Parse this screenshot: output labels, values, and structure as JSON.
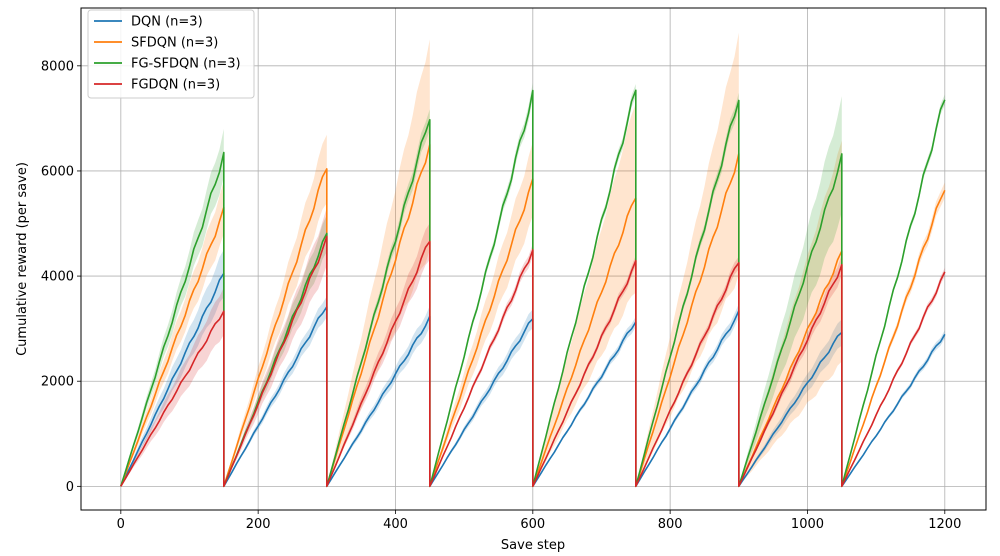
{
  "chart_data": {
    "type": "line",
    "title": "",
    "xlabel": "Save step",
    "ylabel": "Cumulative reward (per save)",
    "xlim": [
      -58,
      1260
    ],
    "ylim": [
      -450,
      9100
    ],
    "xticks": [
      0,
      200,
      400,
      600,
      800,
      1000,
      1200
    ],
    "yticks": [
      0,
      2000,
      4000,
      6000,
      8000
    ],
    "xtick_labels": [
      "0",
      "200",
      "400",
      "600",
      "800",
      "1000",
      "1200"
    ],
    "ytick_labels": [
      "0",
      "2000",
      "4000",
      "6000",
      "8000"
    ],
    "grid": true,
    "legend_position": "top-left",
    "segment_starts": [
      0,
      150,
      300,
      450,
      600,
      750,
      900,
      1050
    ],
    "segment_ends": [
      150,
      300,
      450,
      600,
      750,
      900,
      1050,
      1200
    ],
    "series": [
      {
        "name": "DQN (n=3)",
        "color": "#1f77b4",
        "peaks": [
          4050,
          3450,
          3200,
          3200,
          3150,
          3300,
          2950,
          2900
        ],
        "band_halfwidth": [
          450,
          200,
          200,
          180,
          100,
          130,
          250,
          80
        ]
      },
      {
        "name": "SFDQN (n=3)",
        "color": "#ff7f0e",
        "peaks": [
          5250,
          6100,
          6500,
          5800,
          5550,
          6300,
          4450,
          5700
        ],
        "band_halfwidth": [
          500,
          650,
          2000,
          700,
          1800,
          2300,
          2100,
          150
        ]
      },
      {
        "name": "FG-SFDQN (n=3)",
        "color": "#2ca02c",
        "peaks": [
          6300,
          4800,
          7050,
          7450,
          7550,
          7400,
          6250,
          7400
        ],
        "band_halfwidth": [
          450,
          350,
          200,
          150,
          120,
          150,
          1100,
          100
        ]
      },
      {
        "name": "FGDQN (n=3)",
        "color": "#d62728",
        "peaks": [
          3350,
          4700,
          4700,
          4500,
          4250,
          4300,
          4200,
          4050
        ],
        "band_halfwidth": [
          450,
          550,
          350,
          120,
          100,
          120,
          200,
          80
        ]
      }
    ]
  }
}
